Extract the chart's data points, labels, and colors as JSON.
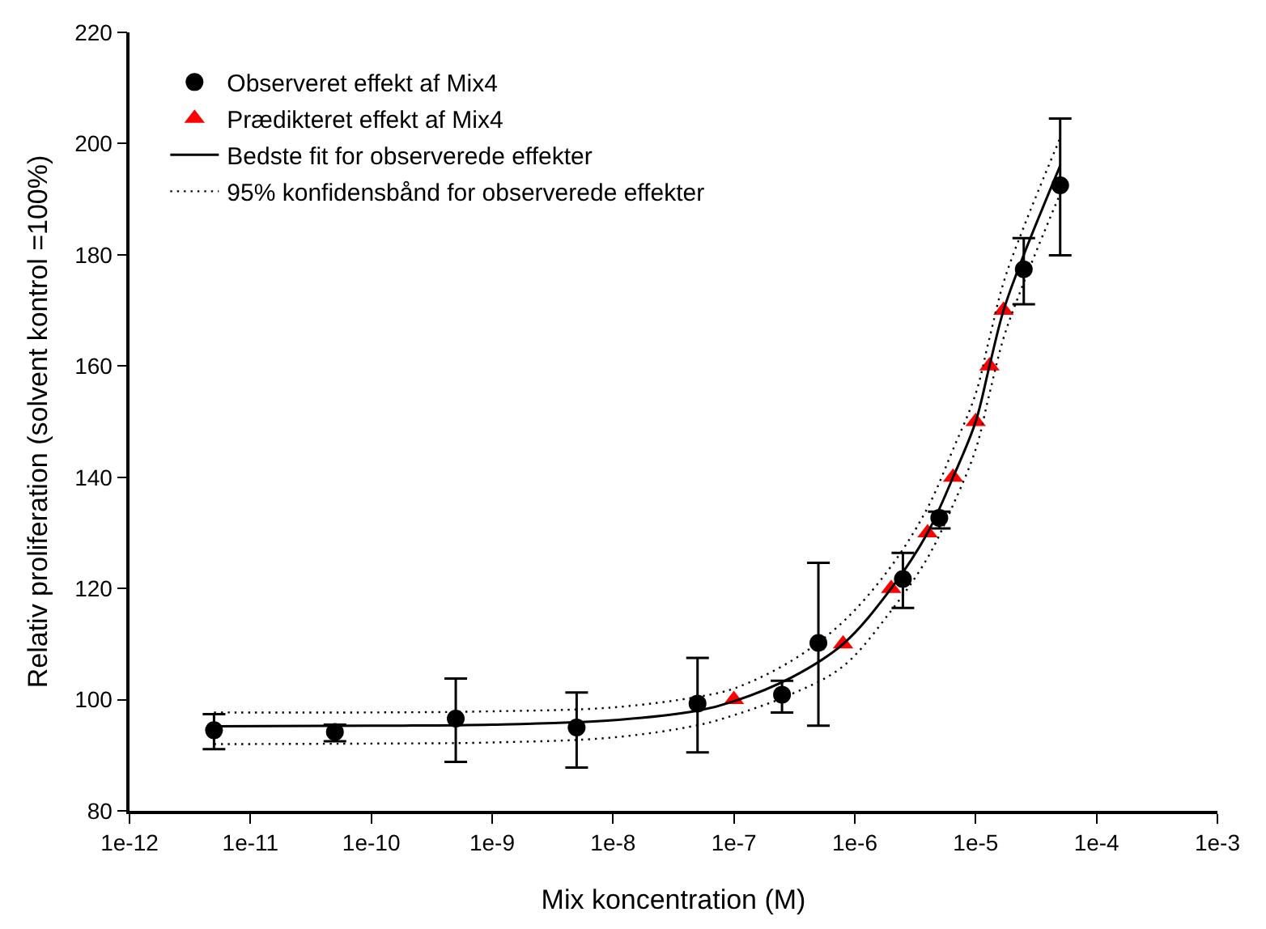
{
  "chart_data": {
    "type": "scatter",
    "xlabel": "Mix koncentration (M)",
    "ylabel": "Relativ proliferation (solvent kontrol =100%)",
    "log": "x",
    "xlim": [
      1e-12,
      0.001
    ],
    "xticks": [
      {
        "value": 1e-12,
        "label": "1e-12"
      },
      {
        "value": 1e-11,
        "label": "1e-11"
      },
      {
        "value": 1e-10,
        "label": "1e-10"
      },
      {
        "value": 1e-09,
        "label": "1e-9"
      },
      {
        "value": 1e-08,
        "label": "1e-8"
      },
      {
        "value": 1e-07,
        "label": "1e-7"
      },
      {
        "value": 1e-06,
        "label": "1e-6"
      },
      {
        "value": 1e-05,
        "label": "1e-5"
      },
      {
        "value": 0.0001,
        "label": "1e-4"
      },
      {
        "value": 0.001,
        "label": "1e-3"
      }
    ],
    "ylim": [
      80,
      220
    ],
    "yticks": [
      80,
      100,
      120,
      140,
      160,
      180,
      200,
      220
    ],
    "legend": "top left",
    "series": [
      {
        "name": "Observeret effekt af Mix4",
        "marker": "circle",
        "color": "#000000",
        "x": [
          5e-12,
          5e-11,
          5e-10,
          5e-09,
          5e-08,
          2.5e-07,
          5e-07,
          2.5e-06,
          5e-06,
          2.5e-05,
          5e-05
        ],
        "values": [
          94.5,
          94.2,
          96.6,
          95.0,
          99.3,
          100.9,
          110.2,
          121.7,
          132.7,
          177.4,
          192.5
        ],
        "errors": [
          [
            91.1,
            97.4
          ],
          [
            92.5,
            95.5
          ],
          [
            88.8,
            103.8
          ],
          [
            87.8,
            101.3
          ],
          [
            90.5,
            107.5
          ],
          [
            97.7,
            103.4
          ],
          [
            95.3,
            124.6
          ],
          [
            116.5,
            126.4
          ],
          [
            130.8,
            133.8
          ],
          [
            171.1,
            183.0
          ],
          [
            179.9,
            204.5
          ]
        ]
      },
      {
        "name": "Prædikteret effekt af Mix4",
        "marker": "triangle",
        "color": "#ff0000",
        "x": [
          1e-07,
          8e-07,
          2e-06,
          4e-06,
          6.5e-06,
          1e-05,
          1.3e-05,
          1.7e-05
        ],
        "values": [
          100,
          110,
          120,
          130,
          140,
          150,
          160,
          170
        ]
      },
      {
        "name": "Bedste fit for observerede effekter",
        "type": "line",
        "line_style": "solid",
        "color": "#000000",
        "x": [
          5e-12,
          1e-10,
          1e-09,
          1e-08,
          5e-08,
          1e-07,
          3e-07,
          8e-07,
          2e-06,
          4e-06,
          6.5e-06,
          1e-05,
          1.3e-05,
          1.7e-05,
          2.5e-05,
          5e-05
        ],
        "values": [
          95.2,
          95.3,
          95.5,
          96.3,
          98,
          99.7,
          104,
          110,
          120,
          130,
          140,
          150,
          160,
          170,
          180,
          196
        ]
      },
      {
        "name": "95% konfidensbånd for observerede effekter",
        "type": "line",
        "line_style": "dotted",
        "color": "#000000",
        "x": [
          5e-12,
          1e-10,
          1e-09,
          1e-08,
          5e-08,
          1e-07,
          3e-07,
          8e-07,
          2e-06,
          4e-06,
          6.5e-06,
          1e-05,
          1.3e-05,
          1.7e-05,
          2.5e-05,
          5e-05
        ],
        "values": [
          97.7,
          97.7,
          97.9,
          98.6,
          100.5,
          102,
          107,
          114,
          124,
          134.5,
          145,
          155,
          165,
          175,
          185,
          201
        ]
      },
      {
        "type": "line",
        "line_style": "dotted",
        "color": "#000000",
        "x": [
          5e-12,
          1e-10,
          1e-09,
          1e-08,
          5e-08,
          1e-07,
          3e-07,
          8e-07,
          2e-06,
          4e-06,
          6.5e-06,
          1e-05,
          1.3e-05,
          1.7e-05,
          2.5e-05,
          5e-05
        ],
        "values": [
          92.0,
          92.1,
          92.3,
          93.2,
          95.4,
          97.2,
          101,
          106,
          116,
          125.5,
          135,
          145,
          155,
          165,
          175,
          191
        ]
      }
    ]
  }
}
